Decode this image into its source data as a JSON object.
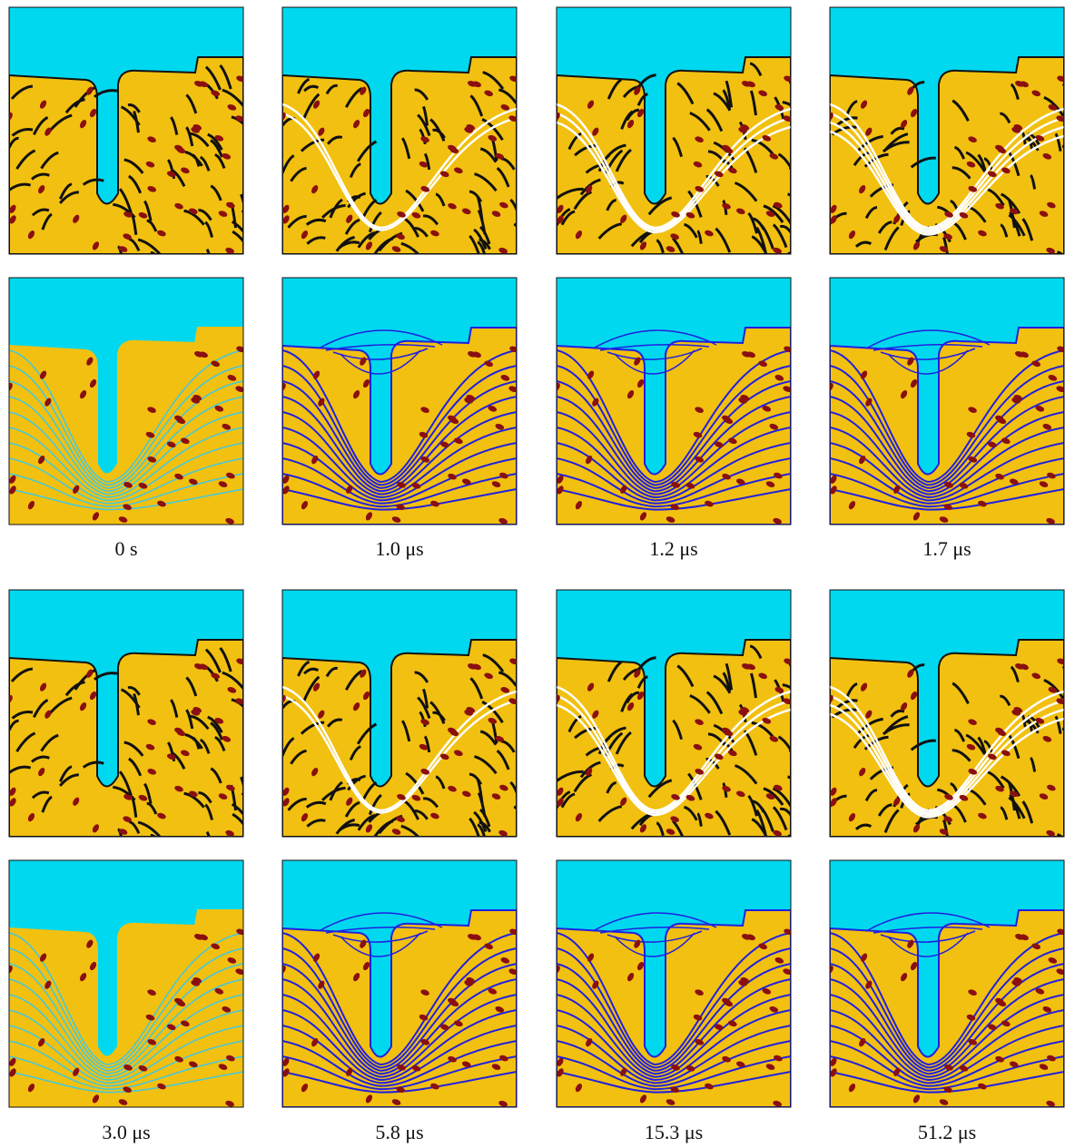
{
  "figure": {
    "rows": [
      {
        "labels": [
          "0 s",
          "1.0 μs",
          "1.2 μs",
          "1.7 μs"
        ]
      },
      {
        "labels": [
          "3.0 μs",
          "5.8 μs",
          "15.3 μs",
          "51.2 μs"
        ]
      }
    ]
  }
}
